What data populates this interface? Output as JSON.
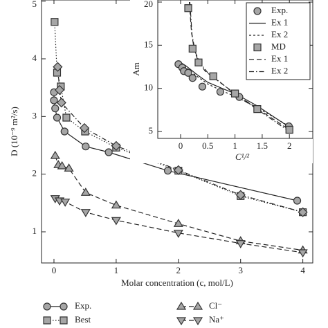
{
  "chart_data": [
    {
      "type": "line",
      "xlabel": "Molar concentration (c, mol/L)",
      "ylabel": "D (10⁻⁹ m²/s)",
      "xlim": [
        -0.2,
        4.16
      ],
      "ylim": [
        0.46,
        5.02
      ],
      "xticks": [
        0,
        1,
        2,
        3,
        4
      ],
      "yticks": [
        1,
        2,
        3,
        4,
        5
      ],
      "legend": "bottom",
      "series": [
        {
          "name": "Exp.",
          "marker": "circle",
          "line": "solid",
          "color": "#a6a6a6",
          "x": [
            0.0,
            0.0,
            0.02,
            0.05,
            0.17,
            0.51,
            0.88,
            1.83,
            3.91
          ],
          "values": [
            3.42,
            3.28,
            3.14,
            2.98,
            2.74,
            2.48,
            2.38,
            2.06,
            1.54
          ]
        },
        {
          "name": "Best",
          "marker": "square",
          "line": "dotted",
          "color": "#a6a6a6",
          "x": [
            0.01,
            0.05,
            0.11,
            0.2,
            0.5,
            1,
            2,
            3,
            4
          ],
          "values": [
            4.64,
            3.76,
            3.52,
            2.98,
            2.74,
            2.46,
            2.06,
            1.62,
            1.34
          ]
        },
        {
          "name": null,
          "marker": "diamond",
          "line": "dashdot",
          "color": "#a6a6a6",
          "x": [
            0.06,
            0.09,
            0.12,
            0.49,
            1,
            2,
            3,
            4
          ],
          "values": [
            3.86,
            3.46,
            3.24,
            2.8,
            2.49,
            2.07,
            1.64,
            1.34
          ]
        },
        {
          "name": "Cl⁻",
          "marker": "triup",
          "line": "dashed",
          "color": "#a6a6a6",
          "x": [
            0.02,
            0.07,
            0.13,
            0.24,
            0.51,
            1,
            2,
            3,
            4
          ],
          "values": [
            2.32,
            2.16,
            2.14,
            2.1,
            1.68,
            1.46,
            1.14,
            0.84,
            0.68
          ]
        },
        {
          "name": "Na⁺",
          "marker": "tridown",
          "line": "dashed",
          "color": "#a6a6a6",
          "x": [
            0.02,
            0.09,
            0.18,
            0.51,
            1,
            2,
            3,
            4
          ],
          "values": [
            1.58,
            1.54,
            1.52,
            1.34,
            1.2,
            0.98,
            0.8,
            0.64
          ]
        }
      ]
    },
    {
      "type": "line",
      "xlabel": "C¹/²",
      "ylabel": "Am",
      "xlim": [
        -0.42,
        2.43
      ],
      "ylim": [
        4.2,
        20.24
      ],
      "xticks": [
        0,
        0.5,
        1,
        1.5,
        2
      ],
      "yticks": [
        5,
        10,
        15,
        20
      ],
      "legend": "upper right",
      "series": [
        {
          "name": "Exp.",
          "marker": "circle",
          "line": null,
          "color": "#a6a6a6",
          "x": [
            -0.04,
            0.03,
            0.06,
            0.14,
            0.22,
            0.4,
            0.73,
            1.08,
            1.99
          ],
          "values": [
            12.8,
            12.4,
            12.0,
            11.8,
            11.2,
            10.2,
            9.6,
            9.0,
            5.6
          ]
        },
        {
          "name": "Ex 1",
          "marker": null,
          "line": "solid",
          "color": "#222222",
          "x": [
            0,
            0.1,
            0.2,
            0.3,
            0.5,
            0.8,
            1,
            1.4,
            2
          ],
          "values": [
            13,
            12.6,
            12.1,
            11.6,
            10.7,
            9.9,
            9.4,
            8.0,
            5.5
          ]
        },
        {
          "name": "Ex 2",
          "marker": null,
          "line": "shortdash",
          "color": "#222222",
          "x": [
            0,
            0.1,
            0.2,
            0.3,
            0.5,
            0.8,
            1,
            1.4,
            2
          ],
          "values": [
            12.9,
            12.4,
            11.9,
            11.4,
            10.5,
            9.6,
            9.1,
            7.8,
            5.6
          ]
        },
        {
          "name": "MD",
          "marker": "square",
          "line": null,
          "color": "#a6a6a6",
          "x": [
            0.14,
            0.22,
            0.33,
            0.6,
            1,
            1.41,
            2
          ],
          "values": [
            19.3,
            14.6,
            13.0,
            11.4,
            9.4,
            7.6,
            5.2
          ]
        },
        {
          "name": "Ex 1",
          "marker": null,
          "line": "dashed",
          "color": "#222222",
          "x": [
            0.16,
            0.2,
            0.25,
            0.32,
            0.45,
            0.7,
            1,
            1.4,
            2
          ],
          "values": [
            20.0,
            16.5,
            14.5,
            13.2,
            12.0,
            10.8,
            9.4,
            7.7,
            5.2
          ]
        },
        {
          "name": "Ex 2",
          "marker": null,
          "line": "dashdot",
          "color": "#222222",
          "x": [
            0.17,
            0.21,
            0.27,
            0.35,
            0.5,
            0.75,
            1,
            1.4,
            2
          ],
          "values": [
            20.0,
            16.2,
            14.2,
            13.0,
            11.8,
            10.6,
            9.3,
            7.6,
            5.0
          ]
        }
      ]
    }
  ]
}
